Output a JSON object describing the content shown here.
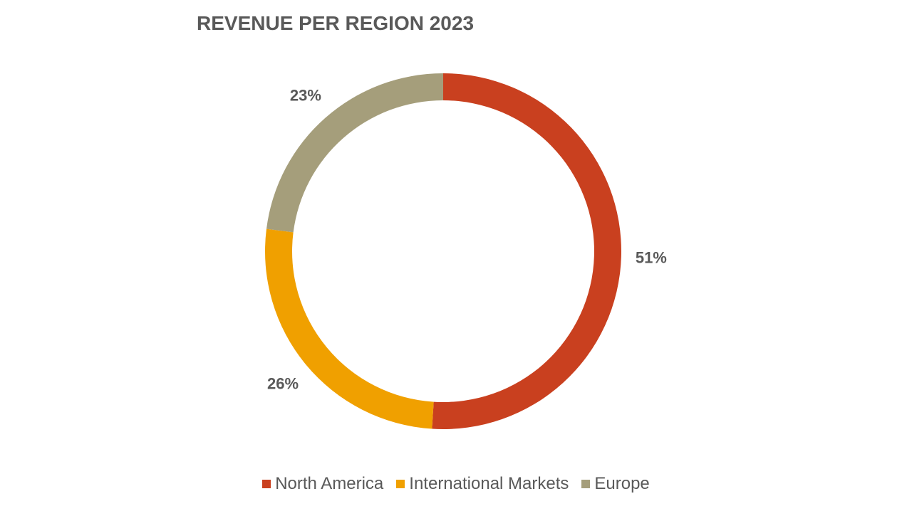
{
  "chart_data": {
    "type": "pie",
    "title": "REVENUE PER REGION 2023",
    "categories": [
      "North America",
      "International Markets",
      "Europe"
    ],
    "values": [
      51,
      26,
      23
    ],
    "labels": [
      "51%",
      "26%",
      "23%"
    ],
    "colors": [
      "#C9401F",
      "#F0A000",
      "#A59E7B"
    ],
    "legend": "bottom",
    "donut": true
  }
}
